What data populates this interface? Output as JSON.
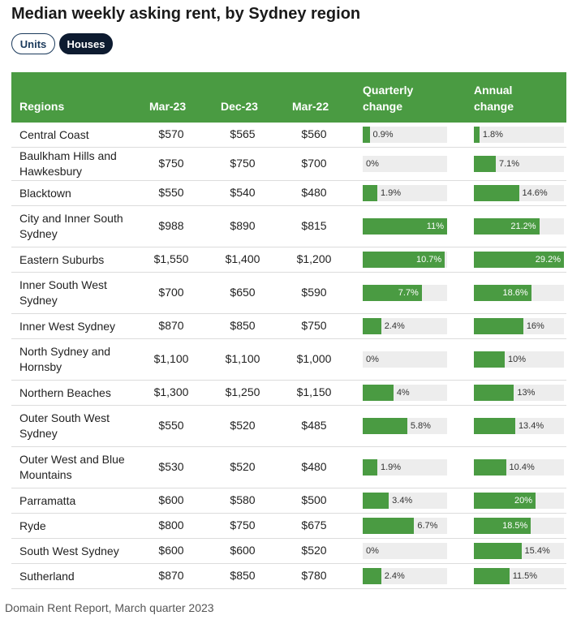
{
  "title": "Median weekly asking rent, by Sydney region",
  "toggles": {
    "units": "Units",
    "houses": "Houses",
    "selected": "Houses"
  },
  "source": "Domain Rent Report, March quarter 2023",
  "colors": {
    "bar": "#4a9b42",
    "header": "#4a9b42",
    "track": "#ededed",
    "selected_toggle": "#0d1b30"
  },
  "chart_data": {
    "type": "table",
    "columns": [
      "Regions",
      "Mar-23",
      "Dec-23",
      "Mar-22",
      "Quarterly change",
      "Annual change"
    ],
    "rows": [
      {
        "region": "Central Coast",
        "mar23": "$570",
        "dec23": "$565",
        "mar22": "$560",
        "quarterly": 0.9,
        "quarterly_label": "0.9%",
        "annual": 1.8,
        "annual_label": "1.8%"
      },
      {
        "region": "Baulkham Hills and Hawkesbury",
        "mar23": "$750",
        "dec23": "$750",
        "mar22": "$700",
        "quarterly": 0,
        "quarterly_label": "0%",
        "annual": 7.1,
        "annual_label": "7.1%"
      },
      {
        "region": "Blacktown",
        "mar23": "$550",
        "dec23": "$540",
        "mar22": "$480",
        "quarterly": 1.9,
        "quarterly_label": "1.9%",
        "annual": 14.6,
        "annual_label": "14.6%"
      },
      {
        "region": "City and Inner South Sydney",
        "mar23": "$988",
        "dec23": "$890",
        "mar22": "$815",
        "quarterly": 11,
        "quarterly_label": "11%",
        "annual": 21.2,
        "annual_label": "21.2%"
      },
      {
        "region": "Eastern Suburbs",
        "mar23": "$1,550",
        "dec23": "$1,400",
        "mar22": "$1,200",
        "quarterly": 10.7,
        "quarterly_label": "10.7%",
        "annual": 29.2,
        "annual_label": "29.2%"
      },
      {
        "region": "Inner South West Sydney",
        "mar23": "$700",
        "dec23": "$650",
        "mar22": "$590",
        "quarterly": 7.7,
        "quarterly_label": "7.7%",
        "annual": 18.6,
        "annual_label": "18.6%"
      },
      {
        "region": "Inner West Sydney",
        "mar23": "$870",
        "dec23": "$850",
        "mar22": "$750",
        "quarterly": 2.4,
        "quarterly_label": "2.4%",
        "annual": 16,
        "annual_label": "16%"
      },
      {
        "region": "North Sydney and Hornsby",
        "mar23": "$1,100",
        "dec23": "$1,100",
        "mar22": "$1,000",
        "quarterly": 0,
        "quarterly_label": "0%",
        "annual": 10,
        "annual_label": "10%"
      },
      {
        "region": "Northern Beaches",
        "mar23": "$1,300",
        "dec23": "$1,250",
        "mar22": "$1,150",
        "quarterly": 4,
        "quarterly_label": "4%",
        "annual": 13,
        "annual_label": "13%"
      },
      {
        "region": "Outer South West Sydney",
        "mar23": "$550",
        "dec23": "$520",
        "mar22": "$485",
        "quarterly": 5.8,
        "quarterly_label": "5.8%",
        "annual": 13.4,
        "annual_label": "13.4%"
      },
      {
        "region": "Outer West and Blue Mountains",
        "mar23": "$530",
        "dec23": "$520",
        "mar22": "$480",
        "quarterly": 1.9,
        "quarterly_label": "1.9%",
        "annual": 10.4,
        "annual_label": "10.4%"
      },
      {
        "region": "Parramatta",
        "mar23": "$600",
        "dec23": "$580",
        "mar22": "$500",
        "quarterly": 3.4,
        "quarterly_label": "3.4%",
        "annual": 20,
        "annual_label": "20%"
      },
      {
        "region": "Ryde",
        "mar23": "$800",
        "dec23": "$750",
        "mar22": "$675",
        "quarterly": 6.7,
        "quarterly_label": "6.7%",
        "annual": 18.5,
        "annual_label": "18.5%"
      },
      {
        "region": "South West Sydney",
        "mar23": "$600",
        "dec23": "$600",
        "mar22": "$520",
        "quarterly": 0,
        "quarterly_label": "0%",
        "annual": 15.4,
        "annual_label": "15.4%"
      },
      {
        "region": "Sutherland",
        "mar23": "$870",
        "dec23": "$850",
        "mar22": "$780",
        "quarterly": 2.4,
        "quarterly_label": "2.4%",
        "annual": 11.5,
        "annual_label": "11.5%"
      }
    ],
    "quarterly_max": 11,
    "annual_max": 29.2
  }
}
